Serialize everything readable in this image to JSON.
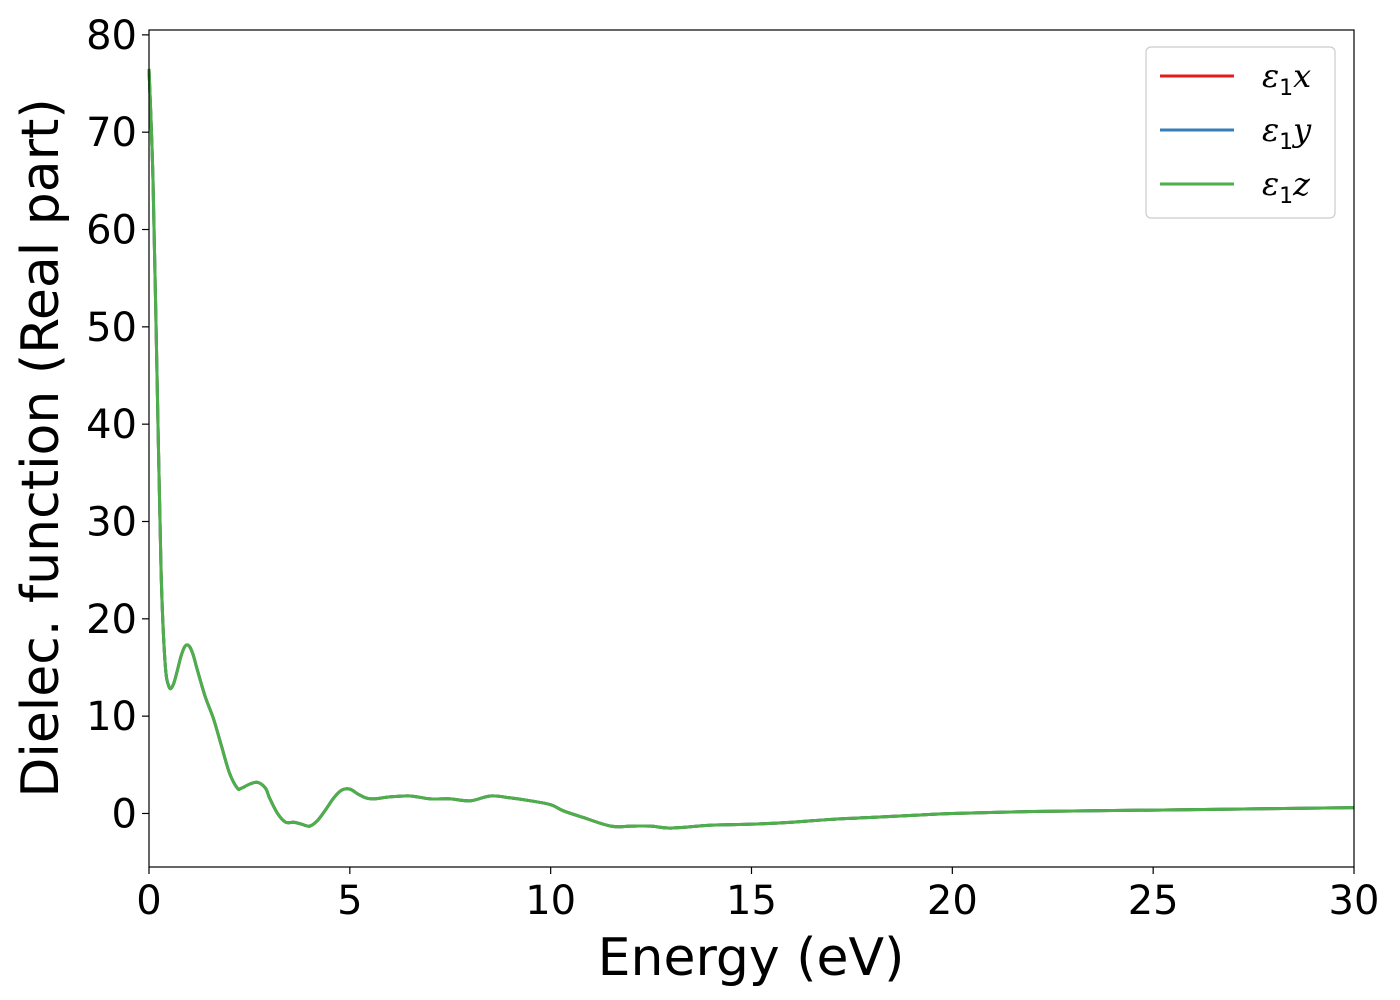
{
  "chart_data": {
    "type": "line",
    "title": "",
    "xlabel": "Energy (eV)",
    "ylabel": "Dielec. function (Real part)",
    "xlim": [
      0,
      30
    ],
    "ylim": [
      -5.5,
      80.5
    ],
    "xticks": [
      0,
      5,
      10,
      15,
      20,
      25,
      30
    ],
    "yticks": [
      0,
      10,
      20,
      30,
      40,
      50,
      60,
      70,
      80
    ],
    "grid": false,
    "legend_position": "top-right",
    "x": [
      0.0,
      0.1,
      0.2,
      0.3,
      0.4,
      0.5,
      0.6,
      0.7,
      0.8,
      0.9,
      1.0,
      1.1,
      1.2,
      1.4,
      1.6,
      1.8,
      2.0,
      2.2,
      2.3,
      2.5,
      2.7,
      2.9,
      3.0,
      3.2,
      3.4,
      3.6,
      3.8,
      4.0,
      4.2,
      4.4,
      4.6,
      4.8,
      5.0,
      5.2,
      5.4,
      5.6,
      6.0,
      6.5,
      7.0,
      7.5,
      8.0,
      8.5,
      9.0,
      9.5,
      10.0,
      10.3,
      10.8,
      11.5,
      12.0,
      12.5,
      13.0,
      14.0,
      15.0,
      16.0,
      17.0,
      18.0,
      19.0,
      20.0,
      22.0,
      24.0,
      26.0,
      28.0,
      30.0
    ],
    "series": [
      {
        "name": "x",
        "color": "#e41a1c",
        "values": [
          76.5,
          65.0,
          45.0,
          25.0,
          15.5,
          13.0,
          13.2,
          14.6,
          16.2,
          17.2,
          17.2,
          16.3,
          14.8,
          12.0,
          9.8,
          7.0,
          4.2,
          2.6,
          2.6,
          3.0,
          3.2,
          2.6,
          1.6,
          0.0,
          -0.9,
          -0.9,
          -1.1,
          -1.3,
          -0.7,
          0.4,
          1.6,
          2.4,
          2.5,
          2.0,
          1.6,
          1.5,
          1.7,
          1.8,
          1.5,
          1.5,
          1.3,
          1.8,
          1.6,
          1.3,
          0.9,
          0.3,
          -0.4,
          -1.3,
          -1.3,
          -1.3,
          -1.5,
          -1.2,
          -1.1,
          -0.9,
          -0.6,
          -0.4,
          -0.2,
          0.0,
          0.2,
          0.3,
          0.4,
          0.5,
          0.6
        ]
      },
      {
        "name": "y",
        "color": "#377eb8",
        "values": [
          76.5,
          65.0,
          45.0,
          25.0,
          15.5,
          13.0,
          13.2,
          14.6,
          16.2,
          17.2,
          17.2,
          16.3,
          14.8,
          12.0,
          9.8,
          7.0,
          4.2,
          2.6,
          2.6,
          3.0,
          3.2,
          2.6,
          1.6,
          0.0,
          -0.9,
          -0.9,
          -1.1,
          -1.3,
          -0.7,
          0.4,
          1.6,
          2.4,
          2.5,
          2.0,
          1.6,
          1.5,
          1.7,
          1.8,
          1.5,
          1.5,
          1.3,
          1.8,
          1.6,
          1.3,
          0.9,
          0.3,
          -0.4,
          -1.3,
          -1.3,
          -1.3,
          -1.5,
          -1.2,
          -1.1,
          -0.9,
          -0.6,
          -0.4,
          -0.2,
          0.0,
          0.2,
          0.3,
          0.4,
          0.5,
          0.6
        ]
      },
      {
        "name": "z",
        "color": "#4daf4a",
        "values": [
          76.5,
          65.0,
          45.0,
          25.0,
          15.5,
          13.0,
          13.2,
          14.6,
          16.2,
          17.2,
          17.2,
          16.3,
          14.8,
          12.0,
          9.8,
          7.0,
          4.2,
          2.6,
          2.6,
          3.0,
          3.2,
          2.6,
          1.6,
          0.0,
          -0.9,
          -0.9,
          -1.1,
          -1.3,
          -0.7,
          0.4,
          1.6,
          2.4,
          2.5,
          2.0,
          1.6,
          1.5,
          1.7,
          1.8,
          1.5,
          1.5,
          1.3,
          1.8,
          1.6,
          1.3,
          0.9,
          0.3,
          -0.4,
          -1.3,
          -1.3,
          -1.3,
          -1.5,
          -1.2,
          -1.1,
          -0.9,
          -0.6,
          -0.4,
          -0.2,
          0.0,
          0.2,
          0.3,
          0.4,
          0.5,
          0.6
        ]
      }
    ],
    "legend": [
      {
        "symbol": "ε",
        "sub": "1",
        "var": "x",
        "color": "#e41a1c"
      },
      {
        "symbol": "ε",
        "sub": "1",
        "var": "y",
        "color": "#377eb8"
      },
      {
        "symbol": "ε",
        "sub": "1",
        "var": "z",
        "color": "#4daf4a"
      }
    ]
  }
}
